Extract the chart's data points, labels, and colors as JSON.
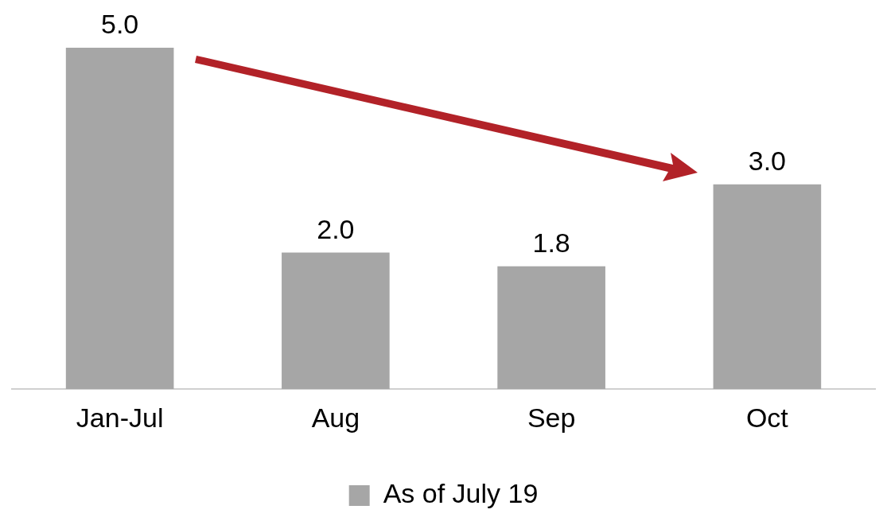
{
  "chart_data": {
    "type": "bar",
    "categories": [
      "Jan-Jul",
      "Aug",
      "Sep",
      "Oct"
    ],
    "series": [
      {
        "name": "As of July 19",
        "color": "#a6a6a6",
        "values": [
          5.0,
          2.0,
          1.8,
          3.0
        ],
        "value_labels": [
          "5.0",
          "2.0",
          "1.8",
          "3.0"
        ]
      }
    ],
    "legend": "bottom",
    "grid": false
  }
}
